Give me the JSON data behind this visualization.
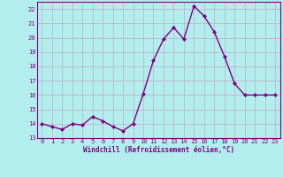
{
  "x": [
    0,
    1,
    2,
    3,
    4,
    5,
    6,
    7,
    8,
    9,
    10,
    11,
    12,
    13,
    14,
    15,
    16,
    17,
    18,
    19,
    20,
    21,
    22,
    23
  ],
  "y": [
    14.0,
    13.8,
    13.6,
    14.0,
    13.9,
    14.5,
    14.2,
    13.8,
    13.5,
    14.0,
    16.1,
    18.4,
    19.9,
    20.7,
    19.9,
    22.2,
    21.5,
    20.4,
    18.7,
    16.8,
    16.0,
    16.0,
    16.0,
    16.0
  ],
  "line_color": "#800080",
  "marker": "D",
  "marker_size": 2,
  "bg_color": "#b2eeee",
  "grid_color": "#c8a8c8",
  "xlabel": "Windchill (Refroidissement éolien,°C)",
  "xlabel_color": "#800080",
  "tick_color": "#800080",
  "spine_color": "#800080",
  "ylim": [
    13,
    22.5
  ],
  "xlim": [
    -0.5,
    23.5
  ],
  "yticks": [
    13,
    14,
    15,
    16,
    17,
    18,
    19,
    20,
    21,
    22
  ],
  "xticks": [
    0,
    1,
    2,
    3,
    4,
    5,
    6,
    7,
    8,
    9,
    10,
    11,
    12,
    13,
    14,
    15,
    16,
    17,
    18,
    19,
    20,
    21,
    22,
    23
  ],
  "xtick_labels": [
    "0",
    "1",
    "2",
    "3",
    "4",
    "5",
    "6",
    "7",
    "8",
    "9",
    "10",
    "11",
    "12",
    "13",
    "14",
    "15",
    "16",
    "17",
    "18",
    "19",
    "20",
    "21",
    "22",
    "23"
  ],
  "ytick_labels": [
    "13",
    "14",
    "15",
    "16",
    "17",
    "18",
    "19",
    "20",
    "21",
    "22"
  ],
  "tick_fontsize": 5,
  "xlabel_fontsize": 5.5,
  "linewidth": 1.0
}
